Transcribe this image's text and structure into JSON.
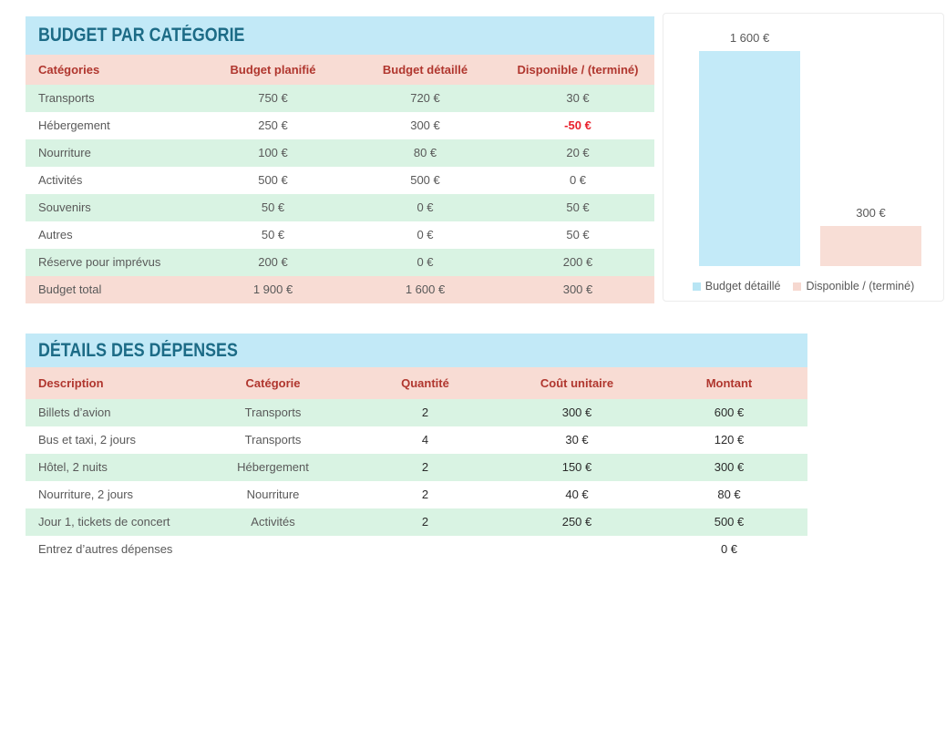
{
  "colors": {
    "section_title_bg": "#c2e9f7",
    "section_title_text": "#1c6b86",
    "table_header_bg": "#f8dcd4",
    "table_header_text": "#b0362e",
    "row_alt_bg": "#d9f3e3",
    "body_text": "#595959",
    "negative_value_text": "#e9202c",
    "total_row_bg": "#f8dcd4",
    "chart_bar_blue": "#c3eaf8",
    "chart_bar_pink": "#f8ded6"
  },
  "budget_table": {
    "title": "BUDGET PAR CATÉGORIE",
    "columns": [
      "Catégories",
      "Budget planifié",
      "Budget détaillé",
      "Disponible / (terminé)"
    ],
    "rows": [
      {
        "category": "Transports",
        "planned": "750 €",
        "detailed": "720 €",
        "available": "30 €"
      },
      {
        "category": "Hébergement",
        "planned": "250 €",
        "detailed": "300 €",
        "available": "-50 €"
      },
      {
        "category": "Nourriture",
        "planned": "100 €",
        "detailed": "80 €",
        "available": "20 €"
      },
      {
        "category": "Activités",
        "planned": "500 €",
        "detailed": "500 €",
        "available": "0 €"
      },
      {
        "category": "Souvenirs",
        "planned": "50 €",
        "detailed": "0 €",
        "available": "50 €"
      },
      {
        "category": "Autres",
        "planned": "50 €",
        "detailed": "0 €",
        "available": "50 €"
      },
      {
        "category": "Réserve pour imprévus",
        "planned": "200 €",
        "detailed": "0 €",
        "available": "200 €"
      }
    ],
    "total_row": {
      "category": "Budget total",
      "planned": "1 900 €",
      "detailed": "1 600 €",
      "available": "300 €"
    }
  },
  "chart_data": {
    "type": "bar",
    "categories": [
      "Budget détaillé",
      "Disponible / (terminé)"
    ],
    "values": [
      1600,
      300
    ],
    "data_labels": [
      "1 600 €",
      "300 €"
    ],
    "bar_colors": [
      "#c3eaf8",
      "#f8ded6"
    ],
    "legend": [
      {
        "label": "Budget détaillé",
        "color": "#b8e5f4"
      },
      {
        "label": "Disponible / (terminé)",
        "color": "#f6d8d0"
      }
    ],
    "legend_position": "bottom",
    "ylim": [
      0,
      1600
    ],
    "grid": false,
    "title": ""
  },
  "expenses_table": {
    "title": "DÉTAILS DES DÉPENSES",
    "columns": [
      "Description",
      "Catégorie",
      "Quantité",
      "Coût unitaire",
      "Montant"
    ],
    "rows": [
      {
        "description": "Billets d’avion",
        "category": "Transports",
        "quantity": "2",
        "unit_cost": "300 €",
        "amount": "600 €"
      },
      {
        "description": "Bus et taxi, 2 jours",
        "category": "Transports",
        "quantity": "4",
        "unit_cost": "30 €",
        "amount": "120 €"
      },
      {
        "description": "Hôtel, 2 nuits",
        "category": "Hébergement",
        "quantity": "2",
        "unit_cost": "150 €",
        "amount": "300 €"
      },
      {
        "description": "Nourriture, 2 jours",
        "category": "Nourriture",
        "quantity": "2",
        "unit_cost": "40 €",
        "amount": "80 €"
      },
      {
        "description": "Jour 1, tickets de concert",
        "category": "Activités",
        "quantity": "2",
        "unit_cost": "250 €",
        "amount": "500 €"
      },
      {
        "description": "Entrez d’autres dépenses",
        "category": "",
        "quantity": "",
        "unit_cost": "",
        "amount": "0 €"
      }
    ]
  }
}
